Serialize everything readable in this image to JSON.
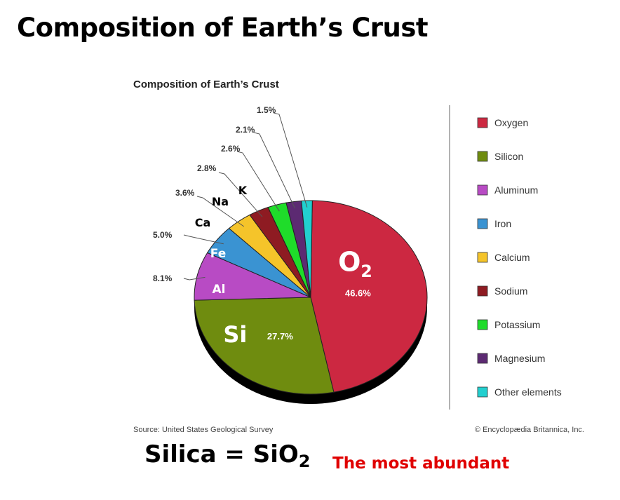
{
  "slide": {
    "title": "Composition of Earth’s Crust",
    "silica_lhs": "Silica = SiO",
    "silica_sub": "2",
    "most_abundant": "The most abundant"
  },
  "chart_data": {
    "type": "pie",
    "title": "Composition of Earth’s Crust",
    "source": "Source: United States Geological Survey",
    "credit": "© Encyclopædia Britannica, Inc.",
    "slices": [
      {
        "name": "Oxygen",
        "value": 46.6,
        "label": "46.6%",
        "symbol": "O",
        "symbol_sub": "2",
        "color": "#cc2841"
      },
      {
        "name": "Silicon",
        "value": 27.7,
        "label": "27.7%",
        "symbol": "Si",
        "color": "#6f8c0f"
      },
      {
        "name": "Aluminum",
        "value": 8.1,
        "label": "8.1%",
        "symbol": "Al",
        "color": "#b84bc4"
      },
      {
        "name": "Iron",
        "value": 5.0,
        "label": "5.0%",
        "symbol": "Fe",
        "color": "#3a93d2"
      },
      {
        "name": "Calcium",
        "value": 3.6,
        "label": "3.6%",
        "symbol": "Ca",
        "color": "#f5c42a"
      },
      {
        "name": "Sodium",
        "value": 2.8,
        "label": "2.8%",
        "symbol": "Na",
        "color": "#8e1b22"
      },
      {
        "name": "Potassium",
        "value": 2.6,
        "label": "2.6%",
        "symbol": "K",
        "color": "#1fdc2a"
      },
      {
        "name": "Magnesium",
        "value": 2.1,
        "label": "2.1%",
        "color": "#5c2a72"
      },
      {
        "name": "Other elements",
        "value": 1.5,
        "label": "1.5%",
        "color": "#22cfcf"
      }
    ],
    "legend_position": "right"
  }
}
